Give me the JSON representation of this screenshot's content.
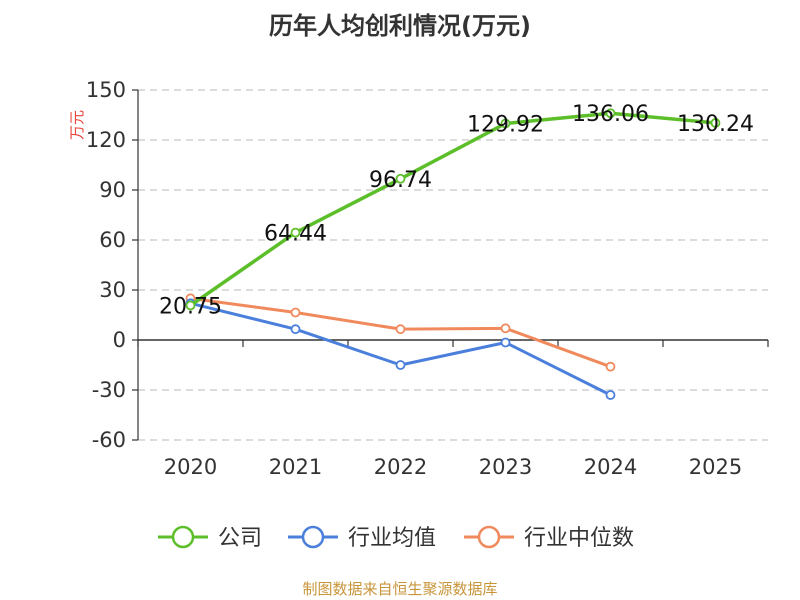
{
  "chart_data": {
    "type": "line",
    "title": "历年人均创利情况(万元)",
    "ylabel": "万元",
    "categories": [
      "2020",
      "2021",
      "2022",
      "2023",
      "2024",
      "2025"
    ],
    "yticks": [
      "150",
      "120",
      "90",
      "60",
      "30",
      "0",
      "-30",
      "-60"
    ],
    "ylim": [
      -60,
      150
    ],
    "grid": true,
    "legend_position": "bottom",
    "series": [
      {
        "name": "公司",
        "color": "#5cbf2a",
        "values": [
          20.75,
          64.44,
          96.74,
          129.92,
          136.06,
          130.24
        ],
        "labels": [
          "20.75",
          "64.44",
          "96.74",
          "129.92",
          "136.06",
          "130.24"
        ]
      },
      {
        "name": "行业均值",
        "color": "#4a7fdc",
        "values": [
          22,
          6.5,
          -15,
          -1.5,
          -33,
          null
        ]
      },
      {
        "name": "行业中位数",
        "color": "#f08a5d",
        "values": [
          25,
          16.5,
          6.5,
          7,
          -16,
          null
        ]
      }
    ]
  },
  "footer": {
    "source": "制图数据来自恒生聚源数据库"
  }
}
